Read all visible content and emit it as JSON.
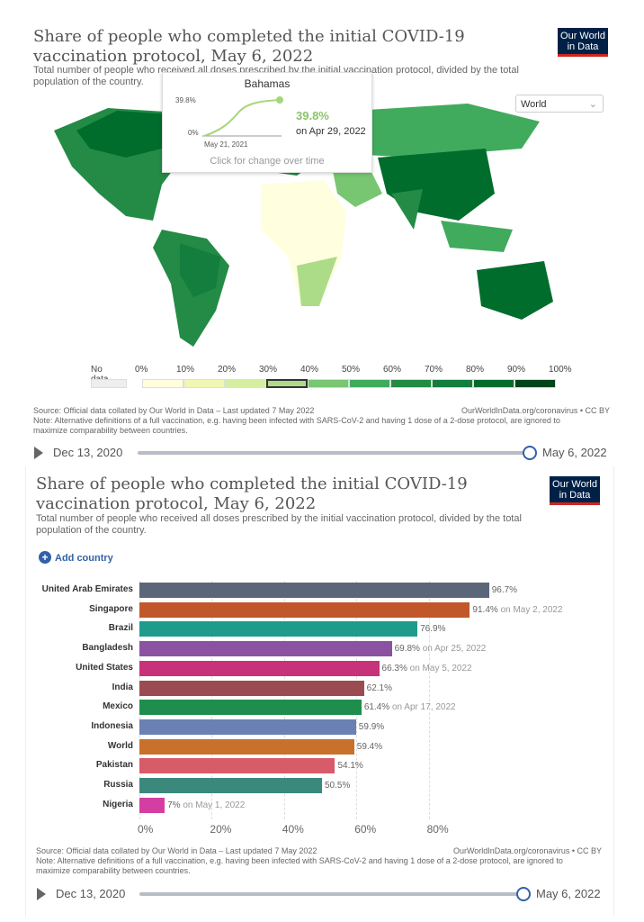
{
  "map_chart": {
    "title": "Share of people who completed the initial COVID-19 vaccination protocol, May 6, 2022",
    "subtitle": "Total number of people who received all doses prescribed by the initial vaccination protocol, divided by the total population of the country.",
    "logo": "Our World in Data",
    "region_select": "World",
    "tooltip": {
      "country": "Bahamas",
      "ymax": "39.8%",
      "ymin": "0%",
      "start": "May 21, 2021",
      "value": "39.8%",
      "date": "on Apr 29, 2022",
      "hint": "Click for change over time"
    },
    "legend": {
      "no_data": "No data",
      "labels": [
        "0%",
        "10%",
        "20%",
        "30%",
        "40%",
        "50%",
        "60%",
        "70%",
        "80%",
        "90%",
        "100%"
      ],
      "colors": [
        "#ffffe0",
        "#f0f7b4",
        "#d6eea0",
        "#acdc87",
        "#78c671",
        "#41ab5d",
        "#238b45",
        "#137e3d",
        "#006d2c",
        "#00441b"
      ],
      "no_data_color": "#eeeeee",
      "highlighted_bin": "30%-40%"
    },
    "source": "Source: Official data collated by Our World in Data – Last updated 7 May 2022",
    "url": "OurWorldInData.org/coronavirus • CC BY",
    "note": "Note: Alternative definitions of a full vaccination, e.g. having been infected with SARS-CoV-2 and having 1 dose of a 2-dose protocol, are ignored to maximize comparability between countries.",
    "timeline": {
      "start": "Dec 13, 2020",
      "end": "May 6, 2022"
    }
  },
  "bar_chart_panel": {
    "title": "Share of people who completed the initial COVID-19 vaccination protocol, May 6, 2022",
    "subtitle": "Total number of people who received all doses prescribed by the initial vaccination protocol, divided by the total population of the country.",
    "logo": "Our World in Data",
    "add_country": "Add country",
    "source": "Source: Official data collated by Our World in Data – Last updated 7 May 2022",
    "url": "OurWorldInData.org/coronavirus • CC BY",
    "note": "Note: Alternative definitions of a full vaccination, e.g. having been infected with SARS-CoV-2 and having 1 dose of a 2-dose protocol, are ignored to maximize comparability between countries.",
    "timeline": {
      "start": "Dec 13, 2020",
      "end": "May 6, 2022"
    }
  },
  "chart_data": {
    "type": "bar",
    "orientation": "horizontal",
    "categories": [
      "United Arab Emirates",
      "Singapore",
      "Brazil",
      "Bangladesh",
      "United States",
      "India",
      "Mexico",
      "Indonesia",
      "World",
      "Pakistan",
      "Russia",
      "Nigeria"
    ],
    "values": [
      96.7,
      91.4,
      76.9,
      69.8,
      66.3,
      62.1,
      61.4,
      59.9,
      59.4,
      54.1,
      50.5,
      7
    ],
    "value_labels": [
      "96.7%",
      "91.4%",
      "76.9%",
      "69.8%",
      "66.3%",
      "62.1%",
      "61.4%",
      "59.9%",
      "59.4%",
      "54.1%",
      "50.5%",
      "7%"
    ],
    "date_notes": [
      "",
      "on May 2, 2022",
      "",
      "on Apr 25, 2022",
      "on May 5, 2022",
      "",
      "on Apr 17, 2022",
      "",
      "",
      "",
      "",
      "on May 1, 2022"
    ],
    "colors": [
      "#5b6678",
      "#c0582a",
      "#1e9b8b",
      "#8b52a1",
      "#c8327a",
      "#9b4c50",
      "#1f8e4c",
      "#6b80b3",
      "#c8712c",
      "#d85b6a",
      "#3b897c",
      "#d43ea3"
    ],
    "xticks": [
      "0%",
      "20%",
      "40%",
      "60%",
      "80%"
    ],
    "xlim": [
      0,
      100
    ]
  }
}
